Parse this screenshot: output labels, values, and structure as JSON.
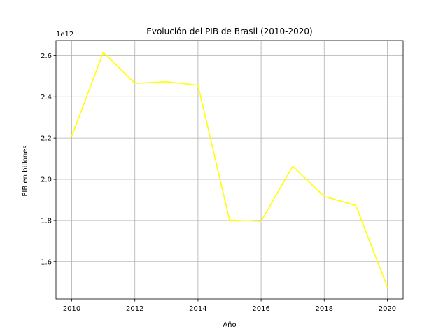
{
  "chart_data": {
    "type": "line",
    "title": "Evolución del PIB de Brasil (2010-2020)",
    "xlabel": "Año",
    "ylabel": "PIB en billones",
    "offset_label": "1e12",
    "x": [
      2010,
      2011,
      2012,
      2013,
      2014,
      2015,
      2016,
      2017,
      2018,
      2019,
      2020
    ],
    "series": [
      {
        "values": [
          2209000000000.0,
          2616000000000.0,
          2465000000000.0,
          2473000000000.0,
          2456000000000.0,
          1802000000000.0,
          1796000000000.0,
          2063000000000.0,
          1917000000000.0,
          1873000000000.0,
          1476000000000.0
        ],
        "color": "#ffff00"
      }
    ],
    "xlim": [
      2009.5,
      2020.5
    ],
    "ylim": [
      1419300000000.0,
      2672600000000.0
    ],
    "xticks": [
      2010,
      2012,
      2014,
      2016,
      2018,
      2020
    ],
    "yticks": [
      1600000000000.0,
      1800000000000.0,
      2000000000000.0,
      2200000000000.0,
      2400000000000.0,
      2600000000000.0
    ],
    "ytick_labels": [
      "1.6",
      "1.8",
      "2.0",
      "2.2",
      "2.4",
      "2.6"
    ],
    "xtick_labels": [
      "2010",
      "2012",
      "2014",
      "2016",
      "2018",
      "2020"
    ],
    "grid": true,
    "legend": "none"
  }
}
